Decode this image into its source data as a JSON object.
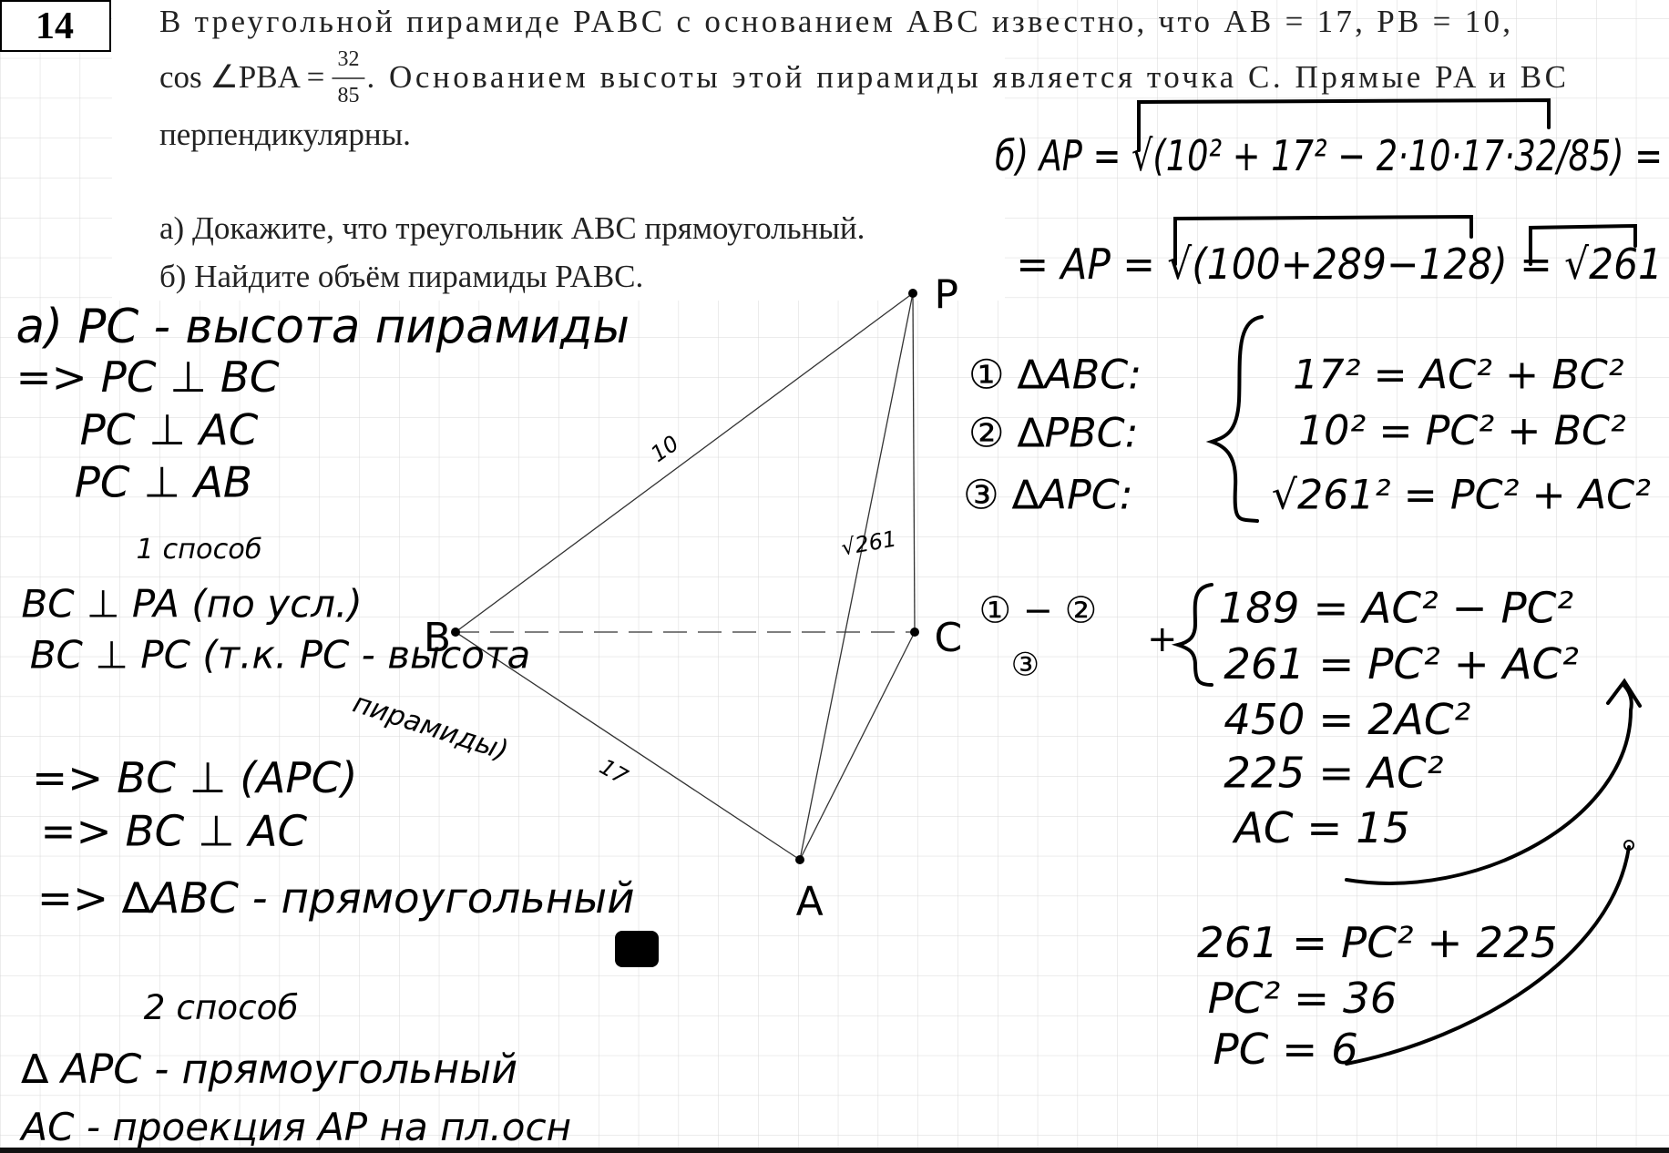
{
  "problem": {
    "number": "14",
    "line1": "В треугольной пирамиде PABC с основанием ABC известно, что AB = 17, PB = 10,",
    "line2_start": "cos ∠PBA =",
    "fraction_numerator": "32",
    "fraction_denominator": "85",
    "line2_end": ". Основанием высоты этой пирамиды является точка C. Прямые PA и BC",
    "line3": "перпендикулярны.",
    "part_a": "а) Докажите, что треугольник ABC прямоугольный.",
    "part_b": "б) Найдите объём пирамиды PABC."
  },
  "figure": {
    "vertices": [
      "P",
      "B",
      "C",
      "A"
    ],
    "edge_labels": [
      "10",
      "17",
      "√261"
    ]
  },
  "notes_left": [
    "а) PC - высота пирамиды",
    "=> PC ⊥ BC",
    "PC ⊥ AC",
    "PC ⊥ AB",
    "1 способ",
    "BC ⊥ PA (по усл.)",
    "BC ⊥ PC (т.к. PC - высота",
    "пирамиды)",
    "=> BC ⊥ (APC)",
    "=> BC ⊥ AC",
    "=> ∆ABC - прямоугольный",
    "2 способ",
    "∆ APC - прямоугольный",
    "AC - проекция AP на пл.осн"
  ],
  "notes_right": [
    "б) AP = √(10² + 17² − 2·10·17·32/85) =",
    "= AP = √(100+289−128) = √261",
    "① ∆ABC:",
    "② ∆PBC:",
    "③ ∆APC:",
    "17² = AC² + BC²",
    "10² = PC² + BC²",
    "√261² = PC² + AC²",
    "① − ②",
    "③",
    "+",
    "189 = AC² − PC²",
    "261 = PC² + AC²",
    "450 = 2AC²",
    "225 = AC²",
    "AC = 15",
    "261 = PC² + 225",
    "PC² = 36",
    "PC = 6"
  ]
}
